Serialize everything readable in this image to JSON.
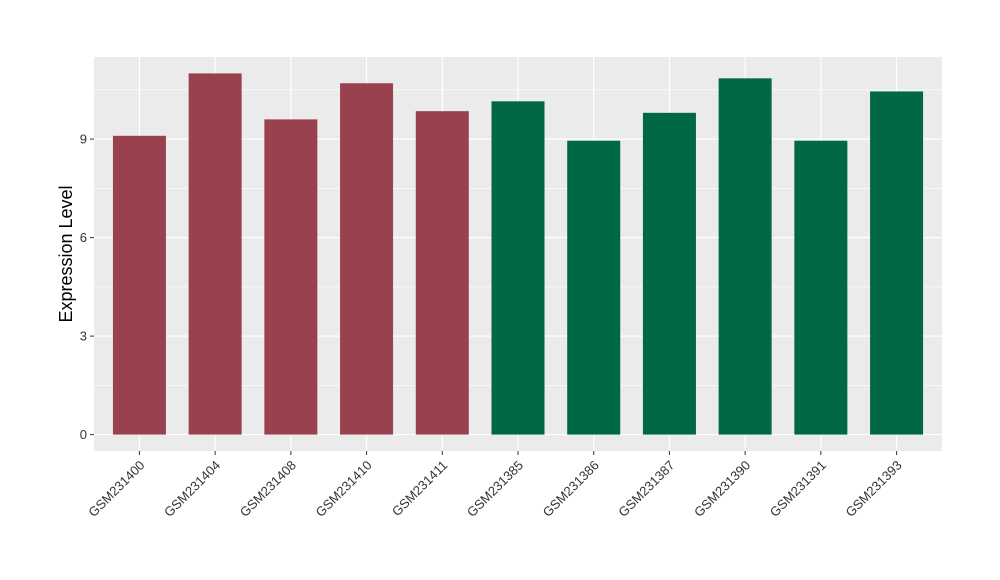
{
  "chart_data": {
    "type": "bar",
    "title": "",
    "xlabel": "",
    "ylabel": "Expression Level",
    "ylim": [
      -0.5,
      11.5
    ],
    "yticks": [
      0,
      3,
      6,
      9
    ],
    "grid": true,
    "legend": "none",
    "categories": [
      "GSM231400",
      "GSM231404",
      "GSM231408",
      "GSM231410",
      "GSM231411",
      "GSM231385",
      "GSM231386",
      "GSM231387",
      "GSM231390",
      "GSM231391",
      "GSM231393"
    ],
    "values": [
      9.1,
      11.0,
      9.6,
      10.7,
      9.85,
      10.15,
      8.95,
      9.8,
      10.85,
      8.95,
      10.45
    ],
    "groups": [
      "a",
      "a",
      "a",
      "a",
      "a",
      "b",
      "b",
      "b",
      "b",
      "b",
      "b"
    ],
    "group_colors": {
      "a": "#99414F",
      "b": "#006845"
    },
    "panel_background": "#EBEBEB",
    "grid_color": "#FFFFFF"
  }
}
